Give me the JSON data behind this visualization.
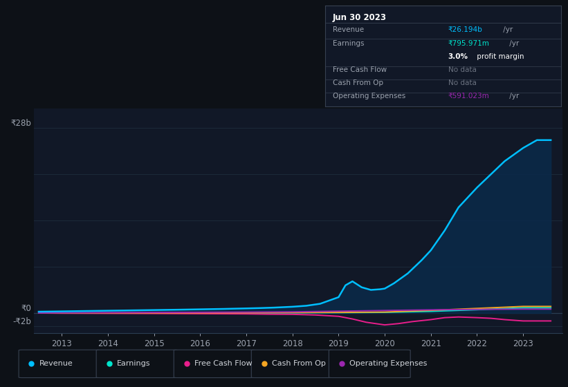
{
  "background_color": "#0d1117",
  "chart_bg_color": "#111827",
  "grid_color": "#1e2d3d",
  "text_color": "#9ca3af",
  "y_labels": [
    "₹28b",
    "₹0",
    "-₹2b"
  ],
  "y_values": [
    28000000000,
    0,
    -2000000000
  ],
  "x_labels": [
    "2013",
    "2014",
    "2015",
    "2016",
    "2017",
    "2018",
    "2019",
    "2020",
    "2021",
    "2022",
    "2023"
  ],
  "x_ticks": [
    2013,
    2014,
    2015,
    2016,
    2017,
    2018,
    2019,
    2020,
    2021,
    2022,
    2023
  ],
  "ylim": [
    -3000000000,
    31000000000
  ],
  "xlim": [
    2012.4,
    2023.85
  ],
  "legend": [
    {
      "label": "Revenue",
      "color": "#00bfff"
    },
    {
      "label": "Earnings",
      "color": "#00e5cc"
    },
    {
      "label": "Free Cash Flow",
      "color": "#e91e8c"
    },
    {
      "label": "Cash From Op",
      "color": "#f5a623"
    },
    {
      "label": "Operating Expenses",
      "color": "#9c27b0"
    }
  ],
  "info_box": {
    "title": "Jun 30 2023",
    "rows": [
      {
        "label": "Revenue",
        "value": "₹26.194b",
        "suffix": " /yr",
        "value_color": "#00bfff",
        "separator": true
      },
      {
        "label": "Earnings",
        "value": "₹795.971m",
        "suffix": " /yr",
        "value_color": "#00e5cc",
        "separator": false
      },
      {
        "label": "",
        "value": "3.0%",
        "suffix": " profit margin",
        "value_color": "#ffffff",
        "separator": true,
        "bold_value": true
      },
      {
        "label": "Free Cash Flow",
        "value": "No data",
        "suffix": "",
        "value_color": "#6b7280",
        "separator": true
      },
      {
        "label": "Cash From Op",
        "value": "No data",
        "suffix": "",
        "value_color": "#6b7280",
        "separator": true
      },
      {
        "label": "Operating Expenses",
        "value": "₹591.023m",
        "suffix": " /yr",
        "value_color": "#9c27b0",
        "separator": false
      }
    ]
  },
  "revenue_x": [
    2012.5,
    2013.0,
    2013.5,
    2014.0,
    2014.5,
    2015.0,
    2015.5,
    2016.0,
    2016.5,
    2017.0,
    2017.3,
    2017.6,
    2018.0,
    2018.3,
    2018.6,
    2019.0,
    2019.15,
    2019.3,
    2019.5,
    2019.7,
    2019.9,
    2020.0,
    2020.2,
    2020.5,
    2020.8,
    2021.0,
    2021.3,
    2021.6,
    2022.0,
    2022.3,
    2022.6,
    2023.0,
    2023.3,
    2023.6
  ],
  "revenue_y": [
    200000000,
    250000000,
    300000000,
    350000000,
    400000000,
    450000000,
    500000000,
    560000000,
    620000000,
    700000000,
    750000000,
    820000000,
    950000000,
    1100000000,
    1400000000,
    2400000000,
    4200000000,
    4800000000,
    3900000000,
    3500000000,
    3600000000,
    3700000000,
    4500000000,
    6000000000,
    8000000000,
    9500000000,
    12500000000,
    16000000000,
    19000000000,
    21000000000,
    23000000000,
    25000000000,
    26194000000,
    26194000000
  ],
  "earnings_x": [
    2012.5,
    2013.0,
    2014.0,
    2015.0,
    2016.0,
    2017.0,
    2018.0,
    2019.0,
    2020.0,
    2021.0,
    2022.0,
    2023.0,
    2023.6
  ],
  "earnings_y": [
    0,
    0,
    0,
    0,
    0,
    20000000,
    40000000,
    60000000,
    100000000,
    250000000,
    500000000,
    795000000,
    795000000
  ],
  "fcf_x": [
    2012.5,
    2013.0,
    2014.0,
    2015.0,
    2016.0,
    2017.0,
    2017.5,
    2018.0,
    2018.5,
    2019.0,
    2019.3,
    2019.6,
    2019.9,
    2020.0,
    2020.3,
    2020.6,
    2021.0,
    2021.3,
    2021.6,
    2022.0,
    2022.3,
    2022.6,
    2023.0,
    2023.3,
    2023.6
  ],
  "fcf_y": [
    0,
    -30000000,
    -50000000,
    -70000000,
    -100000000,
    -130000000,
    -180000000,
    -200000000,
    -300000000,
    -500000000,
    -900000000,
    -1400000000,
    -1700000000,
    -1800000000,
    -1600000000,
    -1300000000,
    -1000000000,
    -700000000,
    -600000000,
    -700000000,
    -800000000,
    -1000000000,
    -1200000000,
    -1200000000,
    -1200000000
  ],
  "cop_x": [
    2012.5,
    2013.0,
    2014.0,
    2015.0,
    2016.0,
    2017.0,
    2018.0,
    2019.0,
    2020.0,
    2021.0,
    2022.0,
    2023.0,
    2023.6
  ],
  "cop_y": [
    0,
    0,
    10000000,
    20000000,
    30000000,
    50000000,
    80000000,
    100000000,
    150000000,
    400000000,
    700000000,
    1000000000,
    1000000000
  ],
  "opex_x": [
    2012.5,
    2013.0,
    2014.0,
    2015.0,
    2016.0,
    2017.0,
    2018.0,
    2019.0,
    2020.0,
    2021.0,
    2022.0,
    2023.0,
    2023.6
  ],
  "opex_y": [
    0,
    30000000,
    60000000,
    90000000,
    110000000,
    140000000,
    180000000,
    280000000,
    380000000,
    480000000,
    550000000,
    591000000,
    591000000
  ],
  "n_gridlines": 5,
  "grid_y_positions": [
    28000000000,
    21000000000,
    14000000000,
    7000000000,
    0,
    -2000000000
  ]
}
